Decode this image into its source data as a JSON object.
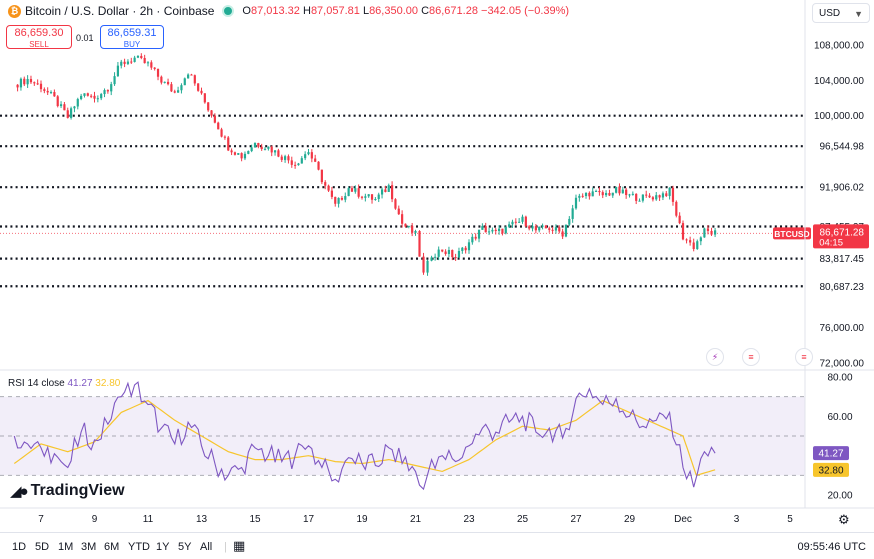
{
  "header": {
    "title": "Bitcoin / U.S. Dollar · 2h · Coinbase",
    "ohlc": [
      {
        "key": "O",
        "value": "87,013.32"
      },
      {
        "key": "H",
        "value": "87,057.81"
      },
      {
        "key": "L",
        "value": "86,350.00"
      },
      {
        "key": "C",
        "value": "86,671.28"
      }
    ],
    "change": "−342.05 (−0.39%)"
  },
  "trade": {
    "sell_price": "86,659.30",
    "sell_label": "SELL",
    "spread": "0.01",
    "buy_price": "86,659.31",
    "buy_label": "BUY"
  },
  "currency": "USD",
  "colors": {
    "up": "#22ab94",
    "down": "#f23645",
    "rsi": "#7e57c2",
    "rsi_ma": "#f7c52c"
  },
  "chart_data": [
    {
      "type": "candlestick",
      "symbol": "BTCUSD",
      "x_ticks": [
        "7",
        "9",
        "11",
        "13",
        "15",
        "17",
        "19",
        "21",
        "23",
        "25",
        "27",
        "29",
        "Dec",
        "3",
        "5"
      ],
      "y_ticks": [
        "108,000.00",
        "104,000.00",
        "100,000.00",
        "96,544.98",
        "91,906.02",
        "87,455.27",
        "83,817.45",
        "80,687.23",
        "76,000.00",
        "72,000.00"
      ],
      "ylim": [
        71000,
        111000
      ],
      "last_price": {
        "label": "BTCUSD",
        "value": "86,671.28",
        "countdown": "04:15"
      },
      "horizontal_levels": [
        100000,
        96544.98,
        91906.02,
        87455.27,
        83817.45,
        80687.23
      ],
      "series": [
        {
          "day": 6.0,
          "close": 103500
        },
        {
          "day": 6.5,
          "close": 104100
        },
        {
          "day": 7.0,
          "close": 103300
        },
        {
          "day": 7.5,
          "close": 101900
        },
        {
          "day": 8.0,
          "close": 99800
        },
        {
          "day": 8.5,
          "close": 102400
        },
        {
          "day": 9.0,
          "close": 102000
        },
        {
          "day": 9.5,
          "close": 103200
        },
        {
          "day": 10.0,
          "close": 105900
        },
        {
          "day": 10.5,
          "close": 106500
        },
        {
          "day": 11.0,
          "close": 105800
        },
        {
          "day": 11.5,
          "close": 104000
        },
        {
          "day": 12.0,
          "close": 102600
        },
        {
          "day": 12.5,
          "close": 105000
        },
        {
          "day": 13.0,
          "close": 102200
        },
        {
          "day": 13.5,
          "close": 99500
        },
        {
          "day": 14.0,
          "close": 96500
        },
        {
          "day": 14.5,
          "close": 95400
        },
        {
          "day": 15.0,
          "close": 96900
        },
        {
          "day": 15.5,
          "close": 96400
        },
        {
          "day": 16.0,
          "close": 95400
        },
        {
          "day": 16.5,
          "close": 94600
        },
        {
          "day": 17.0,
          "close": 96000
        },
        {
          "day": 17.5,
          "close": 92800
        },
        {
          "day": 18.0,
          "close": 89800
        },
        {
          "day": 18.5,
          "close": 91800
        },
        {
          "day": 19.0,
          "close": 91000
        },
        {
          "day": 19.5,
          "close": 90500
        },
        {
          "day": 20.0,
          "close": 92000
        },
        {
          "day": 20.5,
          "close": 87800
        },
        {
          "day": 21.0,
          "close": 86500
        },
        {
          "day": 21.3,
          "close": 82000
        },
        {
          "day": 21.6,
          "close": 84300
        },
        {
          "day": 22.0,
          "close": 84800
        },
        {
          "day": 22.5,
          "close": 84000
        },
        {
          "day": 23.0,
          "close": 85600
        },
        {
          "day": 23.5,
          "close": 87200
        },
        {
          "day": 24.0,
          "close": 86700
        },
        {
          "day": 24.5,
          "close": 87400
        },
        {
          "day": 25.0,
          "close": 88200
        },
        {
          "day": 25.5,
          "close": 87000
        },
        {
          "day": 26.0,
          "close": 87300
        },
        {
          "day": 26.5,
          "close": 86700
        },
        {
          "day": 27.0,
          "close": 90500
        },
        {
          "day": 27.5,
          "close": 91300
        },
        {
          "day": 28.0,
          "close": 91000
        },
        {
          "day": 28.5,
          "close": 91500
        },
        {
          "day": 29.0,
          "close": 90900
        },
        {
          "day": 29.5,
          "close": 90700
        },
        {
          "day": 30.0,
          "close": 90900
        },
        {
          "day": 30.5,
          "close": 91400
        },
        {
          "day": 31.0,
          "close": 86300
        },
        {
          "day": 31.4,
          "close": 85200
        },
        {
          "day": 31.8,
          "close": 86900
        },
        {
          "day": 32.2,
          "close": 86671
        }
      ]
    },
    {
      "type": "line",
      "name": "RSI 14 close",
      "rsi_value": "41.27",
      "ma_value": "32.80",
      "y_ticks": [
        "80.00",
        "60.00",
        "20.00"
      ],
      "ylim": [
        15,
        82
      ],
      "band": [
        30,
        70
      ],
      "series": [
        {
          "name": "RSI",
          "x": [
            6.0,
            6.5,
            7.0,
            7.5,
            8.0,
            8.5,
            9.0,
            9.5,
            10.0,
            10.5,
            11.0,
            11.5,
            12.0,
            12.5,
            13.0,
            13.5,
            14.0,
            14.5,
            15.0,
            15.5,
            16.0,
            16.5,
            17.0,
            17.5,
            18.0,
            18.5,
            19.0,
            19.5,
            20.0,
            20.5,
            21.0,
            21.3,
            21.6,
            22.0,
            22.5,
            23.0,
            23.5,
            24.0,
            24.5,
            25.0,
            25.5,
            26.0,
            26.5,
            27.0,
            27.5,
            28.0,
            28.5,
            29.0,
            29.5,
            30.0,
            30.5,
            31.0,
            31.4,
            31.8,
            32.2
          ],
          "values": [
            50,
            46,
            44,
            41,
            34,
            52,
            48,
            56,
            70,
            76,
            66,
            54,
            46,
            57,
            45,
            36,
            30,
            34,
            44,
            40,
            37,
            40,
            45,
            34,
            28,
            39,
            36,
            35,
            44,
            36,
            32,
            23,
            38,
            40,
            37,
            45,
            54,
            52,
            57,
            60,
            52,
            54,
            49,
            69,
            74,
            66,
            69,
            60,
            55,
            58,
            62,
            34,
            24,
            42,
            41.27
          ]
        },
        {
          "name": "RSI-based MA",
          "x": [
            6.0,
            7.0,
            8.0,
            9.0,
            10.0,
            11.0,
            12.0,
            13.0,
            14.0,
            15.0,
            16.0,
            17.0,
            18.0,
            19.0,
            20.0,
            21.0,
            22.0,
            23.0,
            24.0,
            25.0,
            26.0,
            27.0,
            28.0,
            29.0,
            30.0,
            31.0,
            31.5,
            32.2
          ],
          "values": [
            36,
            46,
            42,
            47,
            62,
            68,
            58,
            50,
            42,
            38,
            38,
            40,
            37,
            36,
            38,
            35,
            32,
            38,
            48,
            55,
            53,
            58,
            68,
            62,
            56,
            50,
            30,
            32.8
          ]
        }
      ]
    }
  ],
  "rsi_legend": {
    "name": "RSI 14 close",
    "value": "41.27",
    "ma": "32.80"
  },
  "time_axis_ticks": [
    "7",
    "9",
    "11",
    "13",
    "15",
    "17",
    "19",
    "21",
    "23",
    "25",
    "27",
    "29",
    "Dec",
    "3",
    "5"
  ],
  "ranges": [
    "1D",
    "5D",
    "1M",
    "3M",
    "6M",
    "YTD",
    "1Y",
    "5Y",
    "All"
  ],
  "clock": "09:55:46 UTC",
  "brand": "TradingView",
  "icons": {
    "settings": "gear-icon",
    "calendar": "calendar-range-icon",
    "event": "event-flag-icon",
    "news": "flag-us-icon"
  }
}
